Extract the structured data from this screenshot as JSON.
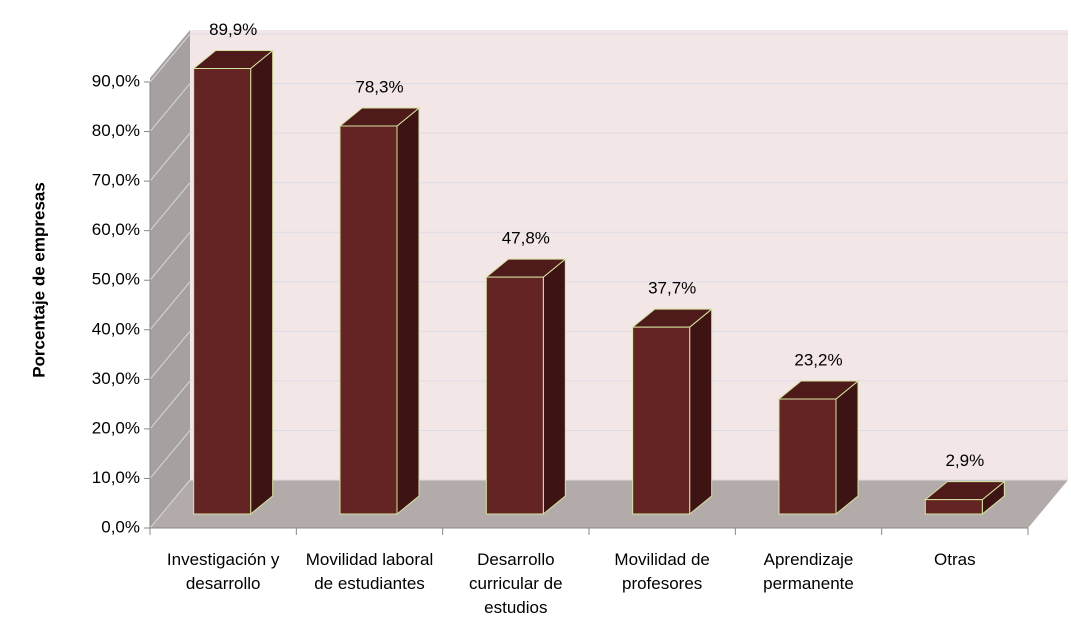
{
  "chart_data": {
    "type": "bar3d",
    "y_label": "Porcentaje de empresas",
    "categories": [
      "Investigación y desarrollo",
      "Movilidad laboral de estudiantes",
      "Desarrollo curricular de estudios",
      "Movilidad de profesores",
      "Aprendizaje permanente",
      "Otras"
    ],
    "values": [
      89.9,
      78.3,
      47.8,
      37.7,
      23.2,
      2.9
    ],
    "value_labels": [
      "89,9%",
      "78,3%",
      "47,8%",
      "37,7%",
      "23,2%",
      "2,9%"
    ],
    "color": "#632423",
    "ylim": [
      0,
      90
    ],
    "yticks": [
      {
        "value": 0,
        "label": "0,0%"
      },
      {
        "value": 10,
        "label": "10,0%"
      },
      {
        "value": 20,
        "label": "20,0%"
      },
      {
        "value": 30,
        "label": "30,0%"
      },
      {
        "value": 40,
        "label": "40,0%"
      },
      {
        "value": 50,
        "label": "50,0%"
      },
      {
        "value": 60,
        "label": "60,0%"
      },
      {
        "value": 70,
        "label": "70,0%"
      },
      {
        "value": 80,
        "label": "80,0%"
      },
      {
        "value": 90,
        "label": "90,0%"
      }
    ],
    "grid": true
  }
}
